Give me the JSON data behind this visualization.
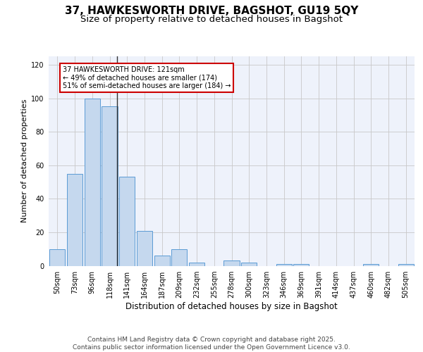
{
  "title1": "37, HAWKESWORTH DRIVE, BAGSHOT, GU19 5QY",
  "title2": "Size of property relative to detached houses in Bagshot",
  "xlabel": "Distribution of detached houses by size in Bagshot",
  "ylabel": "Number of detached properties",
  "categories": [
    "50sqm",
    "73sqm",
    "96sqm",
    "118sqm",
    "141sqm",
    "164sqm",
    "187sqm",
    "209sqm",
    "232sqm",
    "255sqm",
    "278sqm",
    "300sqm",
    "323sqm",
    "346sqm",
    "369sqm",
    "391sqm",
    "414sqm",
    "437sqm",
    "460sqm",
    "482sqm",
    "505sqm"
  ],
  "values": [
    10,
    55,
    100,
    95,
    53,
    21,
    6,
    10,
    2,
    0,
    3,
    2,
    0,
    1,
    1,
    0,
    0,
    0,
    1,
    0,
    1
  ],
  "bar_color": "#c5d8ee",
  "bar_edge_color": "#5b9bd5",
  "annotation_box_text": "37 HAWKESWORTH DRIVE: 121sqm\n← 49% of detached houses are smaller (174)\n51% of semi-detached houses are larger (184) →",
  "annotation_box_color": "#cc0000",
  "vline_color": "#333333",
  "ylim": [
    0,
    125
  ],
  "yticks": [
    0,
    20,
    40,
    60,
    80,
    100,
    120
  ],
  "background_color": "#eef2fb",
  "footer_text": "Contains HM Land Registry data © Crown copyright and database right 2025.\nContains public sector information licensed under the Open Government Licence v3.0.",
  "title1_fontsize": 11,
  "title2_fontsize": 9.5,
  "xlabel_fontsize": 8.5,
  "ylabel_fontsize": 8,
  "tick_fontsize": 7,
  "annotation_fontsize": 7,
  "footer_fontsize": 6.5
}
